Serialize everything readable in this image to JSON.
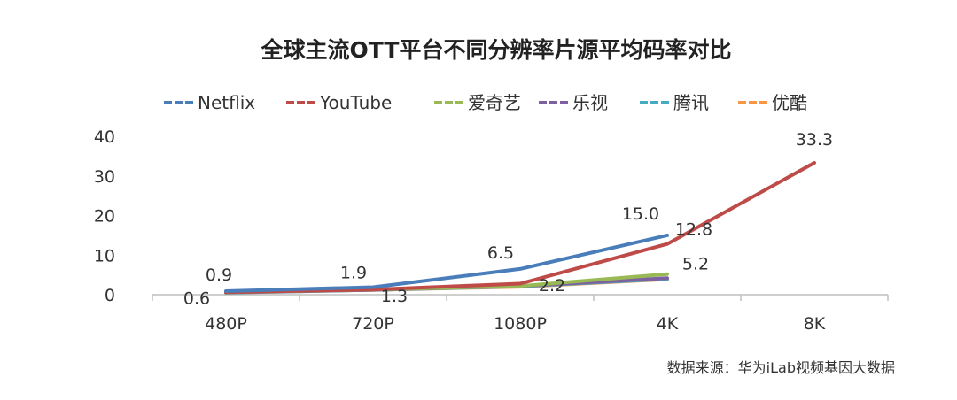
{
  "chart_data": {
    "type": "line",
    "title": "全球主流OTT平台不同分辨率片源平均码率对比",
    "categories": [
      "480P",
      "720P",
      "1080P",
      "4K",
      "8K"
    ],
    "ylim": [
      0,
      40
    ],
    "yticks": [
      0,
      10,
      20,
      30,
      40
    ],
    "legend_position": "top",
    "grid": false,
    "series": [
      {
        "name": "Netflix",
        "color": "#4a7ebb",
        "values": [
          0.9,
          1.9,
          6.5,
          15.0,
          null
        ],
        "labels": [
          "0.9",
          "1.9",
          "6.5",
          "15.0",
          null
        ]
      },
      {
        "name": "YouTube",
        "color": "#be4b48",
        "values": [
          0.6,
          1.3,
          2.8,
          12.8,
          33.3
        ],
        "labels": [
          "0.6",
          "1.3",
          null,
          "12.8",
          "33.3"
        ]
      },
      {
        "name": "爱奇艺",
        "color": "#98b954",
        "values": [
          0.6,
          1.3,
          2.2,
          5.2,
          null
        ],
        "labels": [
          null,
          null,
          "2.2",
          "5.2",
          null
        ]
      },
      {
        "name": "乐视",
        "color": "#7d60a0",
        "values": [
          0.6,
          1.2,
          2.2,
          4.2,
          null
        ],
        "labels": [
          null,
          null,
          null,
          null,
          null
        ]
      },
      {
        "name": "腾讯",
        "color": "#46aac5",
        "values": [
          0.5,
          1.2,
          2.1,
          4.0,
          null
        ],
        "labels": [
          null,
          null,
          null,
          null,
          null
        ]
      },
      {
        "name": "优酷",
        "color": "#f79646",
        "values": [
          0.5,
          1.2,
          2.0,
          3.9,
          null
        ],
        "labels": [
          null,
          null,
          null,
          null,
          null
        ]
      }
    ],
    "source": "数据来源：华为iLab视频基因大数据"
  }
}
